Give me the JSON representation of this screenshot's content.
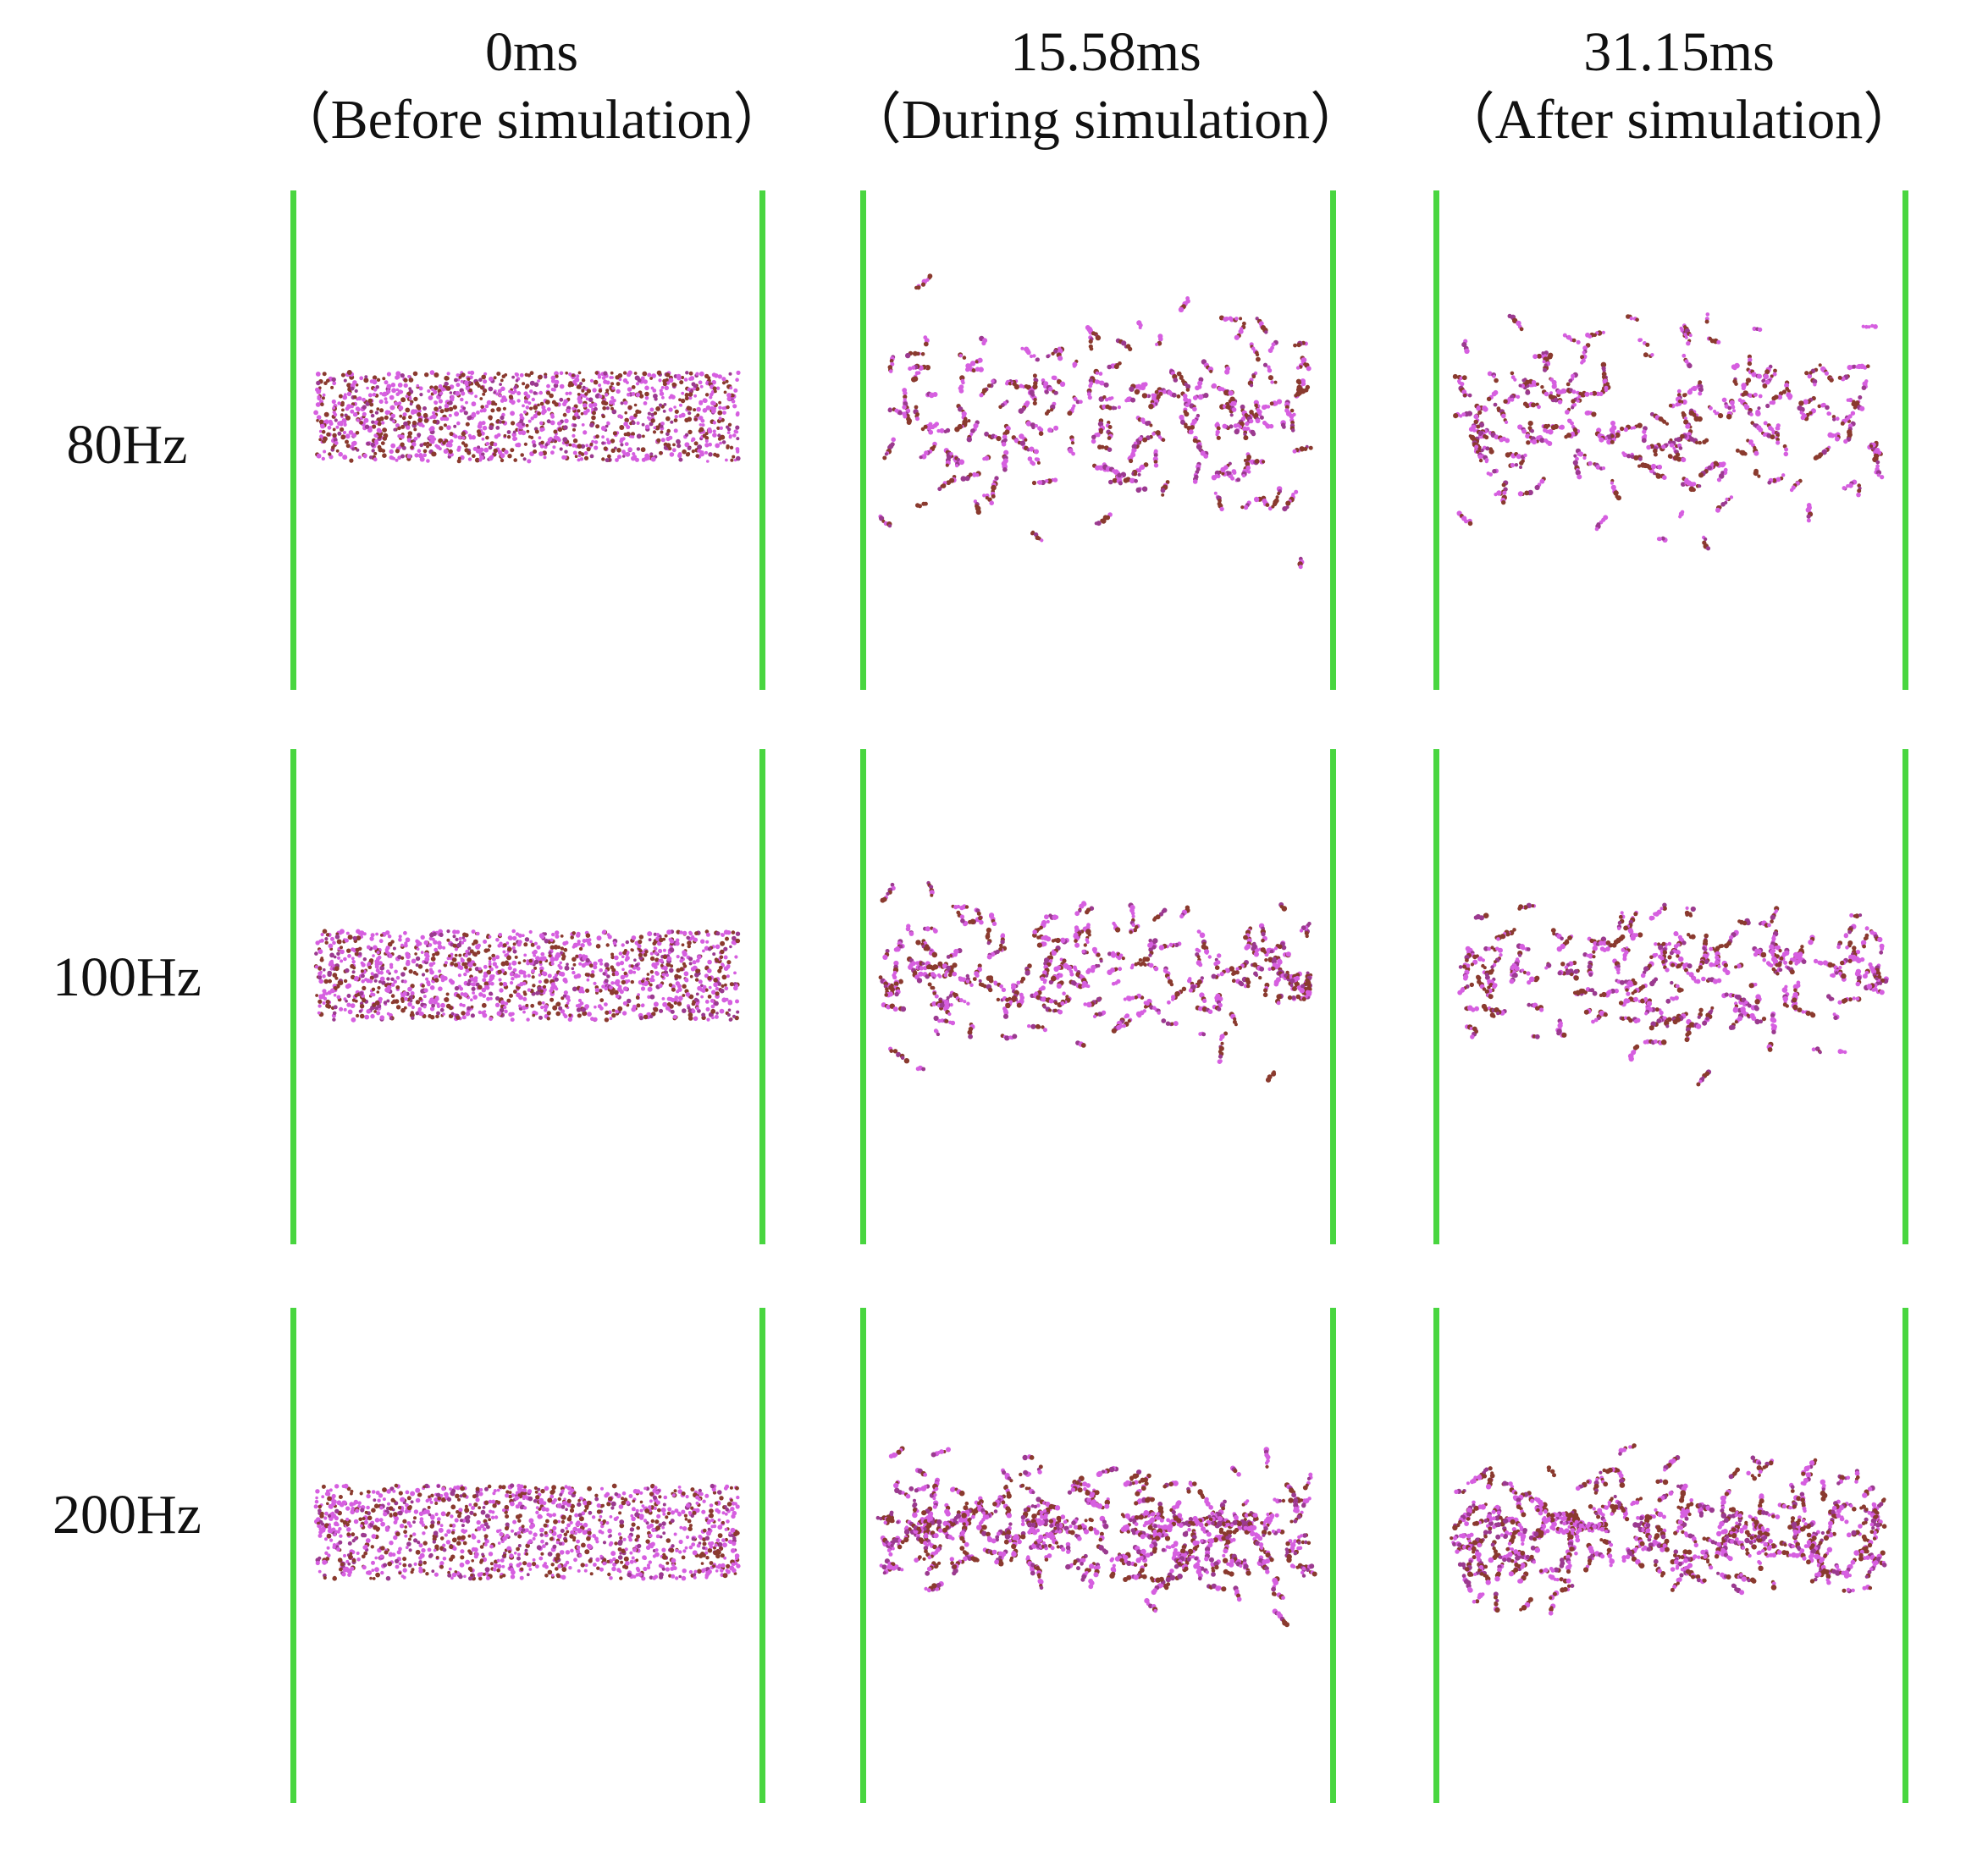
{
  "column_headers": [
    {
      "time": "0ms",
      "stage": "（Before simulation）"
    },
    {
      "time": "15.58ms",
      "stage": "（During simulation）"
    },
    {
      "time": "31.15ms",
      "stage": "（After simulation）"
    }
  ],
  "row_labels": [
    "80Hz",
    "100Hz",
    "200Hz"
  ],
  "colors": {
    "wall": "#49d640",
    "particle_pink": "#d65fe0",
    "particle_brown": "#8a3a2e",
    "particle_purple": "#9b3a8f"
  }
}
